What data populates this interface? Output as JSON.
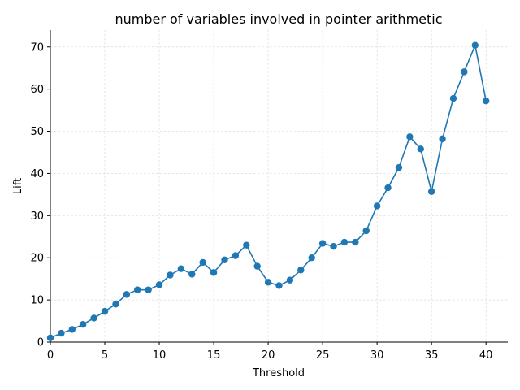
{
  "chart_data": {
    "type": "line",
    "title": "number of variables involved in pointer arithmetic",
    "xlabel": "Threshold",
    "ylabel": "Lift",
    "xlim": [
      0,
      42
    ],
    "ylim": [
      0,
      74
    ],
    "xticks": [
      0,
      5,
      10,
      15,
      20,
      25,
      30,
      35,
      40
    ],
    "yticks": [
      0,
      10,
      20,
      30,
      40,
      50,
      60,
      70
    ],
    "grid": true,
    "series": [
      {
        "color": "#1f77b4",
        "marker": "circle",
        "x": [
          0,
          1,
          2,
          3,
          4,
          5,
          6,
          7,
          8,
          9,
          10,
          11,
          12,
          13,
          14,
          15,
          16,
          17,
          18,
          19,
          20,
          21,
          22,
          23,
          24,
          25,
          26,
          27,
          28,
          29,
          30,
          31,
          32,
          33,
          34,
          35,
          36,
          37,
          38,
          39,
          40
        ],
        "y": [
          1.0,
          2.1,
          3.0,
          4.2,
          5.7,
          7.3,
          9.0,
          11.3,
          12.4,
          12.4,
          13.6,
          15.9,
          17.4,
          16.1,
          18.9,
          16.5,
          19.5,
          20.5,
          23.0,
          18.0,
          14.2,
          13.4,
          14.7,
          17.1,
          20.0,
          23.4,
          22.7,
          23.7,
          23.7,
          26.4,
          32.3,
          36.6,
          41.4,
          48.7,
          45.8,
          35.7,
          48.2,
          57.8,
          64.1,
          70.4,
          57.2
        ]
      }
    ]
  }
}
